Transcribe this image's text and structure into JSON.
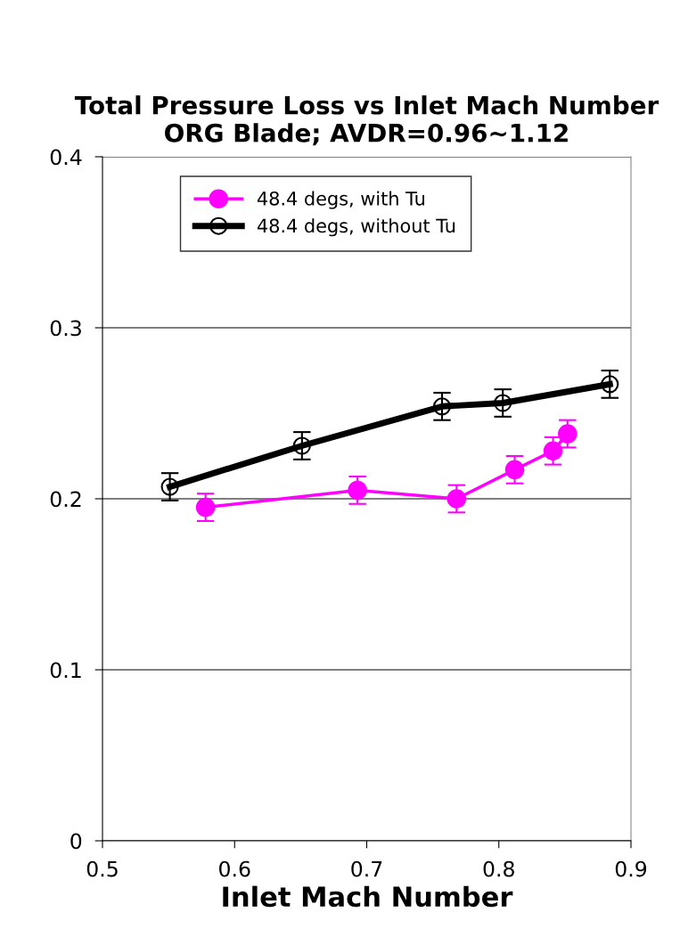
{
  "chart_data": {
    "type": "line",
    "title": "Total Pressure Loss vs Inlet Mach Number\nORG Blade; AVDR=0.96~1.12",
    "xlabel": "Inlet Mach Number",
    "series": [
      {
        "name": "48.4 degs, with Tu",
        "color": "#ff00ff",
        "marker": "circle",
        "x": [
          0.578,
          0.693,
          0.768,
          0.812,
          0.841,
          0.852
        ],
        "values": [
          0.195,
          0.205,
          0.2,
          0.217,
          0.228,
          0.238
        ],
        "errors": [
          0.008,
          0.008,
          0.008,
          0.008,
          0.008,
          0.008
        ]
      },
      {
        "name": "48.4 degs, without Tu",
        "color": "#000000",
        "marker": "circle",
        "x": [
          0.551,
          0.651,
          0.757,
          0.803,
          0.884
        ],
        "values": [
          0.207,
          0.231,
          0.254,
          0.256,
          0.267
        ],
        "errors": [
          0.008,
          0.008,
          0.008,
          0.008,
          0.008
        ]
      }
    ],
    "xlim": [
      0.5,
      0.9
    ],
    "xticks": [
      0.5,
      0.6,
      0.7,
      0.8,
      0.9
    ],
    "ylim": [
      0,
      0.4
    ],
    "yticks": [
      0,
      0.1,
      0.2,
      0.3,
      0.4
    ],
    "grid": "y",
    "legend": "top left"
  }
}
